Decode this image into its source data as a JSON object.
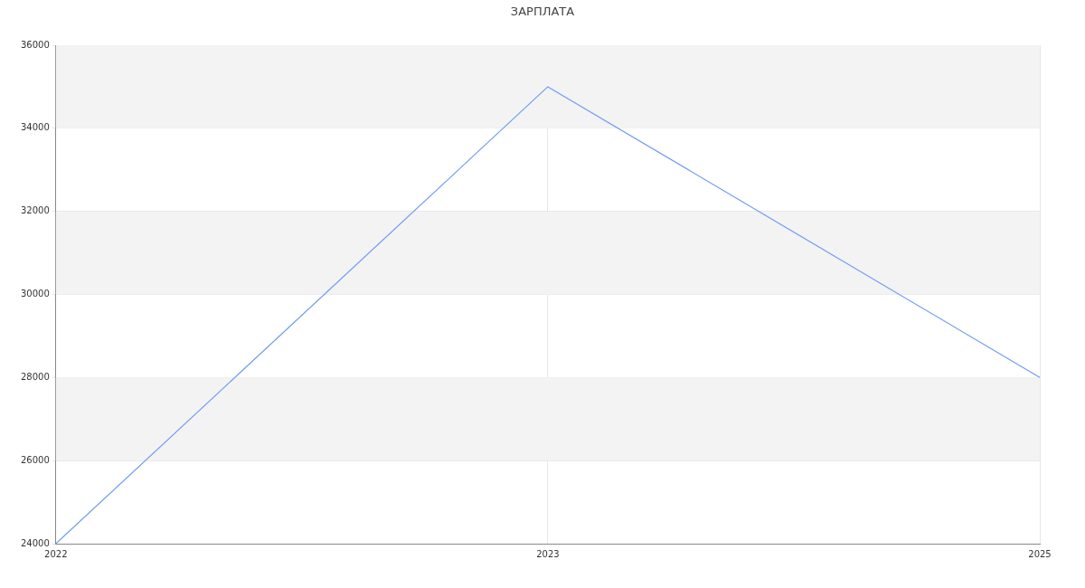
{
  "chart_data": {
    "type": "line",
    "title": "ЗАРПЛАТА",
    "categories": [
      "2022",
      "2023",
      "2025"
    ],
    "series": [
      {
        "color": "#6f9bf5",
        "values": [
          24000,
          35000,
          28000
        ]
      }
    ],
    "ylim": [
      24000,
      36000
    ],
    "yticks": [
      24000,
      26000,
      28000,
      30000,
      32000,
      34000,
      36000
    ],
    "grid": true,
    "legend": false,
    "marker": "none",
    "line_style": "solid",
    "bands": [
      {
        "axis": "y",
        "from": 26000,
        "to": 28000,
        "color": "#f3f3f3"
      },
      {
        "axis": "y",
        "from": 30000,
        "to": 32000,
        "color": "#f3f3f3"
      },
      {
        "axis": "y",
        "from": 34000,
        "to": 36000,
        "color": "#f3f3f3"
      }
    ]
  }
}
